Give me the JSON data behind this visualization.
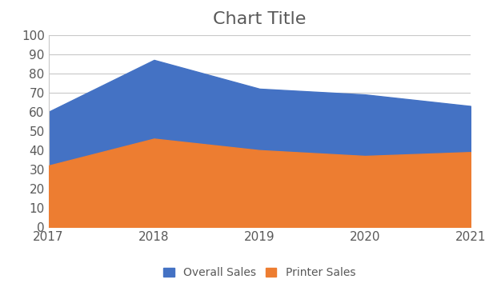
{
  "title": "Chart Title",
  "title_fontsize": 16,
  "title_color": "#595959",
  "x": [
    2017,
    2018,
    2019,
    2020,
    2021
  ],
  "overall_sales": [
    60,
    87,
    72,
    69,
    63
  ],
  "printer_sales": [
    32,
    46,
    40,
    37,
    39
  ],
  "overall_color": "#4472C4",
  "printer_color": "#ED7D31",
  "ylim": [
    0,
    100
  ],
  "yticks": [
    0,
    10,
    20,
    30,
    40,
    50,
    60,
    70,
    80,
    90,
    100
  ],
  "xticks": [
    2017,
    2018,
    2019,
    2020,
    2021
  ],
  "legend_labels": [
    "Overall Sales",
    "Printer Sales"
  ],
  "background_color": "#ffffff",
  "grid_color": "#c8c8c8",
  "tick_color": "#595959",
  "tick_fontsize": 11,
  "spine_color": "#c8c8c8"
}
